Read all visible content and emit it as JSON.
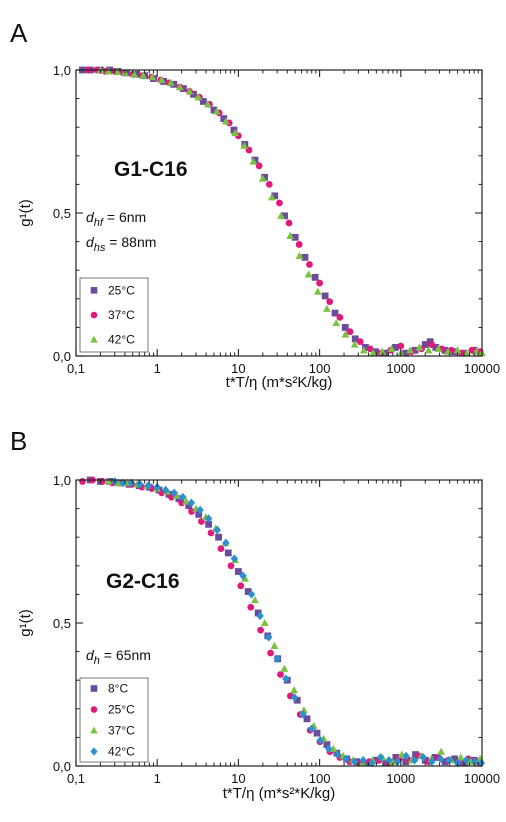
{
  "chart_data": [
    {
      "panel": "A",
      "type": "scatter",
      "annotation_title": "G1-C16",
      "params": [
        {
          "var": "d",
          "sub": "hf",
          "value": " = 6nm"
        },
        {
          "var": "d",
          "sub": "hs",
          "value": " = 88nm"
        }
      ],
      "xlabel": "t*T/η (m*s²K/kg)",
      "ylabel": "g¹(t)",
      "xscale": "log",
      "xlim": [
        0.1,
        10000
      ],
      "ylim": [
        0.0,
        1.0
      ],
      "xticks": [
        {
          "v": 0.1,
          "label": "0,1"
        },
        {
          "v": 1,
          "label": "1"
        },
        {
          "v": 10,
          "label": "10"
        },
        {
          "v": 100,
          "label": "100"
        },
        {
          "v": 1000,
          "label": "1000"
        },
        {
          "v": 10000,
          "label": "10000"
        }
      ],
      "yticks": [
        {
          "v": 0.0,
          "label": "0,0"
        },
        {
          "v": 0.5,
          "label": "0,5"
        },
        {
          "v": 1.0,
          "label": "1,0"
        }
      ],
      "legend_position": "bottom-left",
      "decay_tau": 95,
      "decay_beta": 0.88,
      "series": [
        {
          "name": "25°C",
          "marker": "square",
          "color": "#6a4c9c",
          "x": [
            0.12,
            0.15,
            0.2,
            0.26,
            0.33,
            0.42,
            0.55,
            0.7,
            0.9,
            1.2,
            1.6,
            2.1,
            2.8,
            3.7,
            5,
            6.6,
            8.8,
            12,
            16,
            21,
            28,
            37,
            50,
            66,
            88,
            117,
            155,
            207,
            275,
            366,
            487,
            650,
            860,
            1150,
            1500,
            2000,
            2300,
            2700,
            3500,
            4500,
            6000,
            8000
          ],
          "y": [
            1.0,
            1.0,
            1.0,
            1.0,
            0.995,
            0.99,
            0.985,
            0.98,
            0.97,
            0.96,
            0.95,
            0.935,
            0.915,
            0.89,
            0.86,
            0.83,
            0.79,
            0.74,
            0.685,
            0.625,
            0.56,
            0.49,
            0.415,
            0.345,
            0.275,
            0.21,
            0.15,
            0.1,
            0.06,
            0.03,
            0.015,
            0.01,
            0.03,
            0.01,
            0.02,
            0.04,
            0.05,
            0.03,
            0.02,
            0.015,
            0.01,
            0.02
          ]
        },
        {
          "name": "37°C",
          "marker": "circle",
          "color": "#e0197d",
          "x": [
            0.14,
            0.18,
            0.23,
            0.3,
            0.38,
            0.5,
            0.65,
            0.85,
            1.1,
            1.4,
            1.9,
            2.5,
            3.3,
            4.4,
            5.8,
            7.7,
            10,
            13.5,
            18,
            24,
            32,
            42,
            56,
            75,
            100,
            133,
            178,
            237,
            316,
            420,
            560,
            750,
            1000,
            1350,
            1800,
            2400,
            3200,
            4200,
            5600,
            7500,
            9500
          ],
          "y": [
            1.0,
            1.0,
            0.995,
            0.995,
            0.99,
            0.985,
            0.98,
            0.975,
            0.965,
            0.955,
            0.94,
            0.925,
            0.905,
            0.88,
            0.85,
            0.815,
            0.77,
            0.72,
            0.665,
            0.6,
            0.535,
            0.465,
            0.39,
            0.32,
            0.255,
            0.19,
            0.135,
            0.085,
            0.05,
            0.025,
            0.01,
            0.02,
            0.035,
            0.015,
            0.025,
            0.04,
            0.025,
            0.02,
            0.01,
            0.02,
            0.015
          ]
        },
        {
          "name": "42°C",
          "marker": "triangle",
          "color": "#7cc242",
          "x": [
            0.2,
            0.25,
            0.32,
            0.4,
            0.52,
            0.67,
            0.87,
            1.13,
            1.47,
            1.9,
            2.5,
            3.2,
            4.2,
            5.4,
            7,
            9.1,
            11.8,
            15.3,
            19.9,
            25.8,
            33.5,
            43.5,
            56.5,
            73,
            95,
            123,
            160,
            208,
            270,
            350,
            455,
            590,
            770,
            1000,
            1300,
            1700,
            2200,
            2900,
            3800,
            5000,
            6500,
            8500,
            10000
          ],
          "y": [
            1.0,
            0.995,
            0.995,
            0.99,
            0.985,
            0.98,
            0.975,
            0.965,
            0.955,
            0.94,
            0.925,
            0.905,
            0.88,
            0.855,
            0.82,
            0.78,
            0.735,
            0.68,
            0.62,
            0.555,
            0.49,
            0.42,
            0.35,
            0.285,
            0.225,
            0.165,
            0.115,
            0.075,
            0.04,
            0.02,
            0.01,
            0.015,
            0.025,
            0.01,
            0.02,
            0.03,
            0.02,
            0.025,
            0.015,
            0.02,
            0.01,
            0.015,
            0.01
          ]
        }
      ]
    },
    {
      "panel": "B",
      "type": "scatter",
      "annotation_title": "G2-C16",
      "params": [
        {
          "var": "d",
          "sub": "h",
          "value": " = 65nm"
        }
      ],
      "xlabel": "t*T/η (m*s²*K/kg)",
      "ylabel": "g¹(t)",
      "xscale": "log",
      "xlim": [
        0.1,
        10000
      ],
      "ylim": [
        0.0,
        1.0
      ],
      "xticks": [
        {
          "v": 0.1,
          "label": "0,1"
        },
        {
          "v": 1,
          "label": "1"
        },
        {
          "v": 10,
          "label": "10"
        },
        {
          "v": 100,
          "label": "100"
        },
        {
          "v": 1000,
          "label": "1000"
        },
        {
          "v": 10000,
          "label": "10000"
        }
      ],
      "yticks": [
        {
          "v": 0.0,
          "label": "0,0"
        },
        {
          "v": 0.5,
          "label": "0,5"
        },
        {
          "v": 1.0,
          "label": "1,0"
        }
      ],
      "legend_position": "bottom-left",
      "series": [
        {
          "name": "8°C",
          "marker": "square",
          "color": "#6a4c9c",
          "x": [
            0.15,
            0.2,
            0.26,
            0.34,
            0.45,
            0.6,
            0.8,
            1.05,
            1.4,
            1.85,
            2.45,
            3.25,
            4.3,
            5.7,
            7.5,
            10,
            13.2,
            17.5,
            23,
            30.5,
            40,
            53,
            70,
            93,
            123,
            163,
            215,
            285,
            376,
            500,
            660,
            870,
            1150,
            1520,
            2000,
            2650,
            3500,
            4600,
            6100,
            8000
          ],
          "y": [
            1.0,
            0.995,
            0.995,
            0.99,
            0.985,
            0.98,
            0.975,
            0.965,
            0.95,
            0.935,
            0.91,
            0.88,
            0.845,
            0.8,
            0.745,
            0.68,
            0.61,
            0.535,
            0.455,
            0.375,
            0.3,
            0.23,
            0.165,
            0.115,
            0.075,
            0.045,
            0.025,
            0.015,
            0.01,
            0.02,
            0.01,
            0.03,
            0.015,
            0.04,
            0.02,
            0.03,
            0.015,
            0.025,
            0.01,
            0.02
          ]
        },
        {
          "name": "25°C",
          "marker": "circle",
          "color": "#e0197d",
          "x": [
            0.12,
            0.16,
            0.21,
            0.28,
            0.37,
            0.49,
            0.65,
            0.86,
            1.14,
            1.5,
            2,
            2.65,
            3.5,
            4.6,
            6.1,
            8.1,
            10.7,
            14.2,
            18.8,
            24.9,
            33,
            43.6,
            57.7,
            76.4,
            101,
            134,
            177,
            234,
            310,
            410,
            543,
            719,
            951,
            1260,
            1660,
            2200,
            2920,
            3860,
            5110,
            6760,
            9000
          ],
          "y": [
            0.995,
            1.0,
            0.995,
            0.99,
            0.99,
            0.985,
            0.975,
            0.97,
            0.955,
            0.94,
            0.92,
            0.89,
            0.855,
            0.815,
            0.76,
            0.7,
            0.63,
            0.555,
            0.475,
            0.395,
            0.32,
            0.245,
            0.18,
            0.125,
            0.085,
            0.05,
            0.03,
            0.015,
            0.01,
            0.015,
            0.02,
            0.01,
            0.025,
            0.02,
            0.035,
            0.015,
            0.03,
            0.02,
            0.01,
            0.025,
            0.015
          ]
        },
        {
          "name": "37°C",
          "marker": "triangle",
          "color": "#7cc242",
          "x": [
            0.25,
            0.33,
            0.43,
            0.57,
            0.75,
            0.99,
            1.31,
            1.73,
            2.28,
            3.01,
            3.97,
            5.25,
            6.93,
            9.15,
            12.1,
            16,
            21.1,
            27.8,
            36.8,
            48.5,
            64.1,
            84.6,
            112,
            148,
            195,
            257,
            340,
            449,
            593,
            783,
            1030,
            1360,
            1800,
            2380,
            3140,
            4150,
            5480,
            7240,
            9500
          ],
          "y": [
            0.995,
            0.99,
            0.99,
            0.985,
            0.98,
            0.97,
            0.96,
            0.945,
            0.925,
            0.9,
            0.87,
            0.83,
            0.78,
            0.72,
            0.655,
            0.58,
            0.5,
            0.42,
            0.34,
            0.265,
            0.195,
            0.14,
            0.095,
            0.06,
            0.035,
            0.02,
            0.01,
            0.02,
            0.03,
            0.015,
            0.04,
            0.02,
            0.035,
            0.025,
            0.05,
            0.02,
            0.03,
            0.015,
            0.025
          ]
        },
        {
          "name": "42°C",
          "marker": "diamond",
          "color": "#2b8fd0",
          "x": [
            0.3,
            0.38,
            0.48,
            0.61,
            0.78,
            1,
            1.27,
            1.62,
            2.07,
            2.64,
            3.37,
            4.3,
            5.49,
            7,
            8.93,
            11.4,
            14.5,
            18.5,
            23.6,
            30.1,
            38.4,
            49,
            62.5,
            79.7,
            102,
            130,
            166,
            211,
            270,
            344,
            439,
            560,
            715,
            912,
            1160,
            1480,
            1890,
            2410,
            3080,
            3930,
            5010,
            6390,
            8150,
            9800
          ],
          "y": [
            0.995,
            0.99,
            0.99,
            0.985,
            0.98,
            0.975,
            0.965,
            0.955,
            0.94,
            0.92,
            0.895,
            0.865,
            0.825,
            0.78,
            0.725,
            0.665,
            0.6,
            0.525,
            0.45,
            0.375,
            0.305,
            0.24,
            0.18,
            0.13,
            0.09,
            0.06,
            0.04,
            0.025,
            0.015,
            0.02,
            0.01,
            0.03,
            0.02,
            0.015,
            0.035,
            0.02,
            0.03,
            0.015,
            0.025,
            0.02,
            0.01,
            0.02,
            0.015,
            0.01
          ]
        }
      ]
    }
  ]
}
